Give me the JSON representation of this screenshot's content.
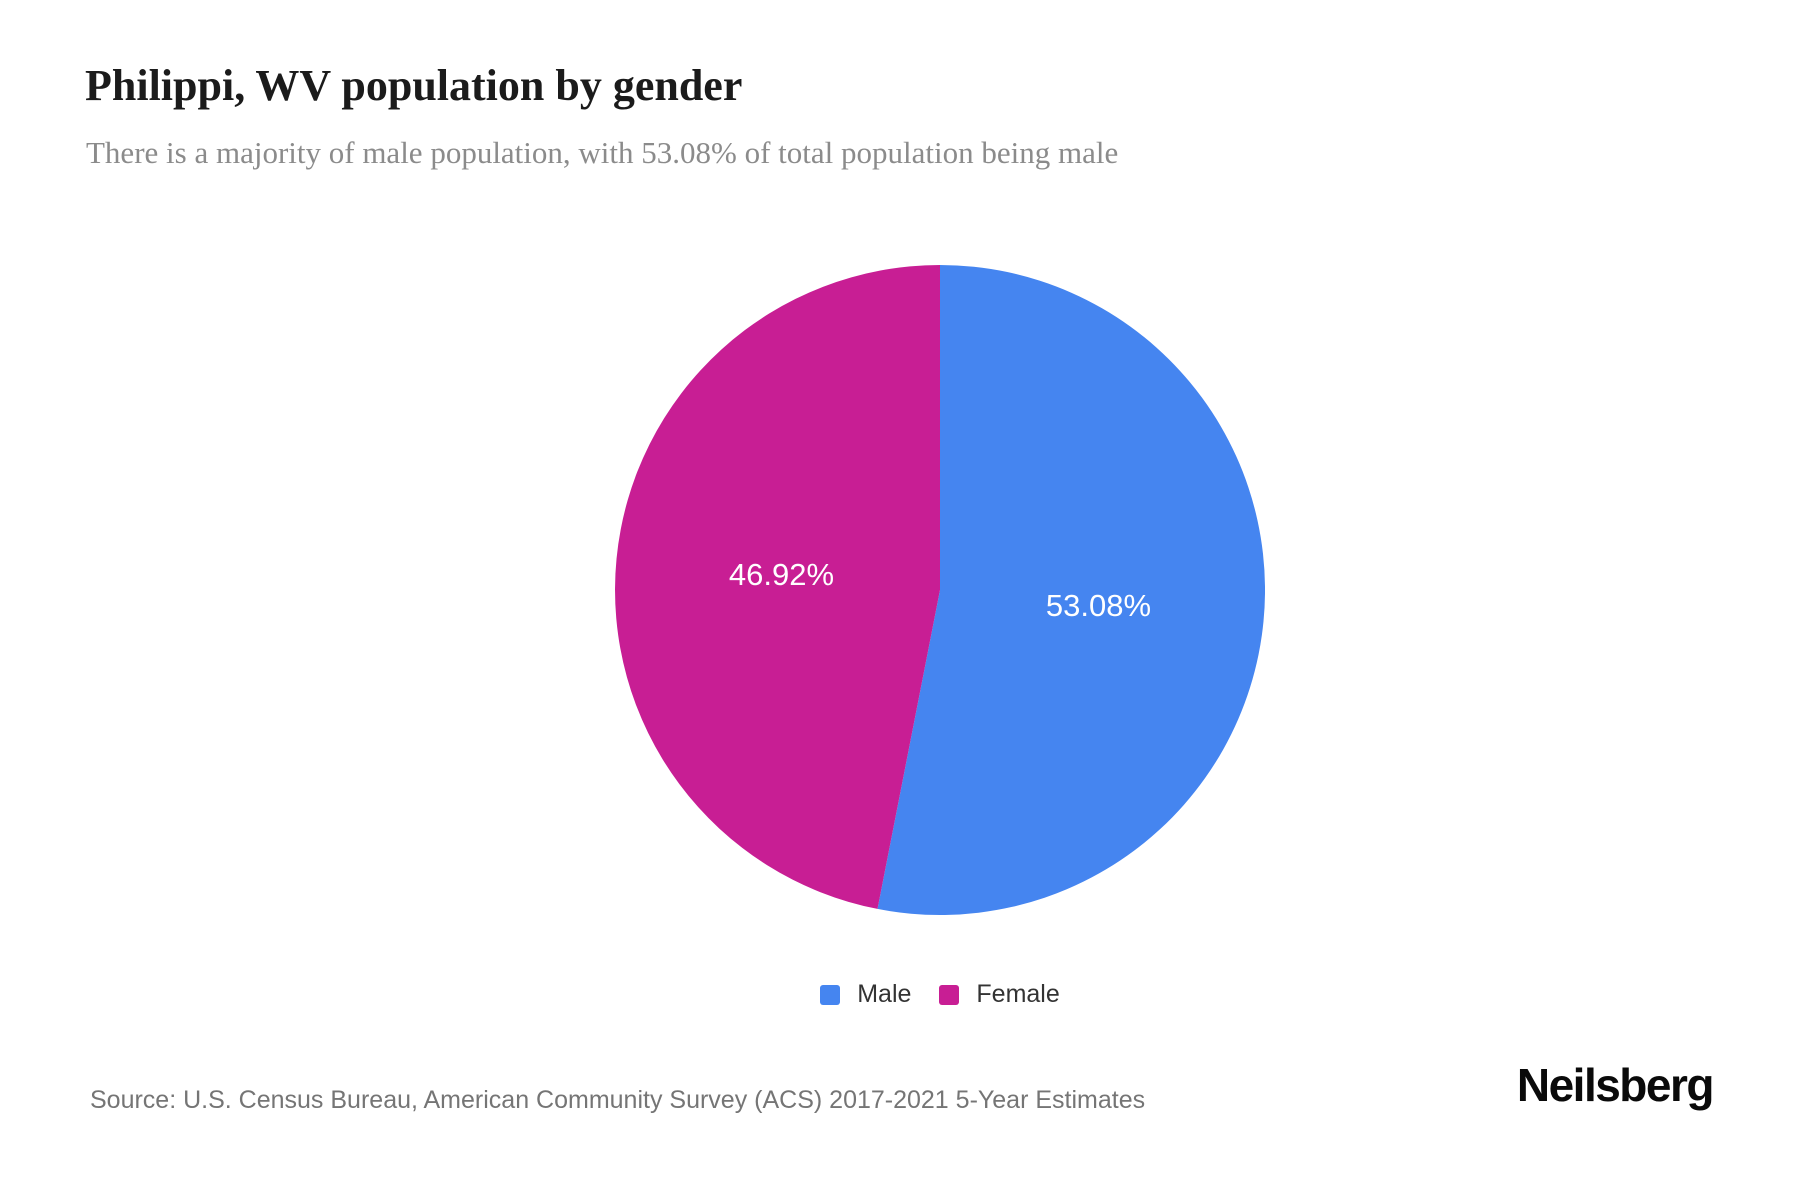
{
  "page": {
    "title": "Philippi, WV population by gender",
    "subtitle": "There is a majority of male population, with 53.08% of total population being male",
    "source": "Source: U.S. Census Bureau, American Community Survey (ACS) 2017-2021 5-Year Estimates",
    "brand": "Neilsberg"
  },
  "colors": {
    "background": "#ffffff",
    "title_text": "#1b1b1b",
    "subtitle_text": "#8b8b8b",
    "source_text": "#757575",
    "legend_text": "#333333",
    "slice_label_text": "#ffffff",
    "male_blue": "#4585F0",
    "female_magenta": "#C81E94"
  },
  "chart_data": {
    "type": "pie",
    "title": "Philippi, WV population by gender",
    "start_angle_deg": 0,
    "direction": "clockwise",
    "legend_position": "bottom",
    "label_radius_fraction": 0.49,
    "slices": [
      {
        "name": "Male",
        "value": 53.08,
        "unit": "%",
        "label": "53.08%",
        "color": "#4585F0"
      },
      {
        "name": "Female",
        "value": 46.92,
        "unit": "%",
        "label": "46.92%",
        "color": "#C81E94"
      }
    ]
  }
}
